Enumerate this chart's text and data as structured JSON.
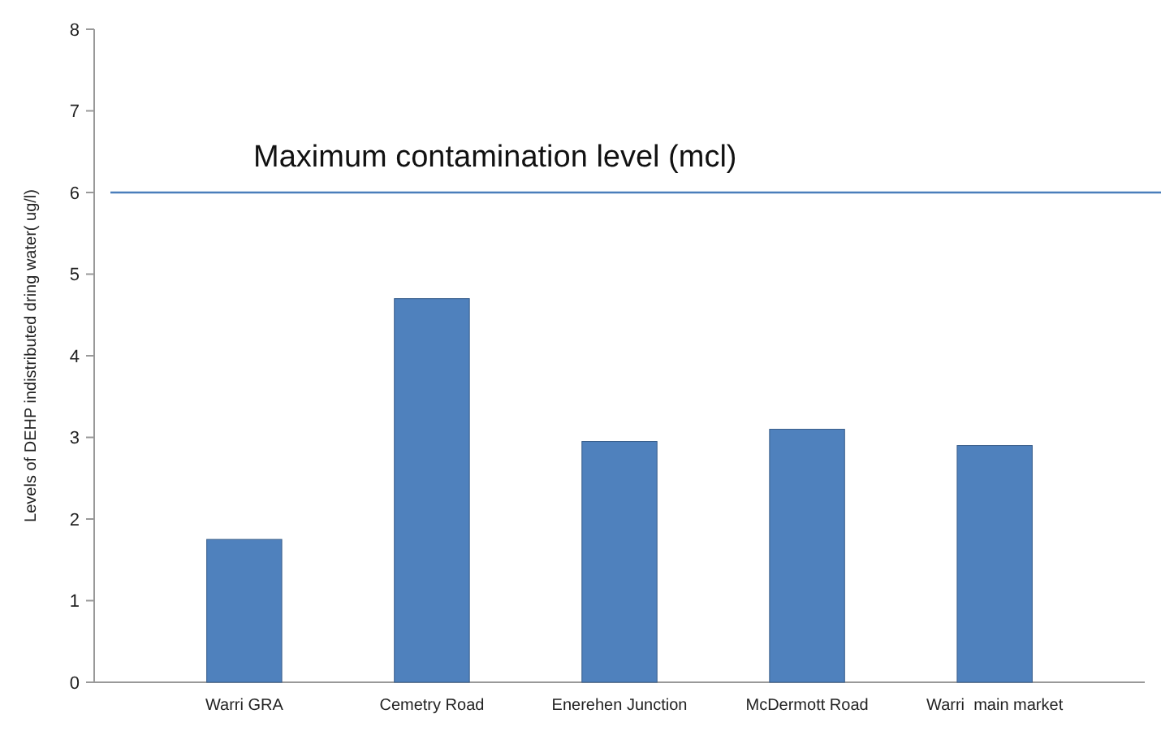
{
  "chart_data": {
    "type": "bar",
    "ylabel": "Levels of DEHP indistributed dring water( ug/l)",
    "categories": [
      "Warri GRA",
      "Cemetry Road",
      "Enerehen Junction",
      "McDermott Road",
      "Warri  main market"
    ],
    "values": [
      1.75,
      4.7,
      2.95,
      3.1,
      2.9
    ],
    "color": "#4f81bd",
    "ylim": [
      0,
      8
    ],
    "yticks": [
      0,
      1,
      2,
      3,
      4,
      5,
      6,
      7,
      8
    ],
    "grid": false,
    "ref_lines": [
      {
        "axis": "y",
        "value": 6,
        "label": "Maximum contamination level (mcl)",
        "color": "#4a7ebb"
      }
    ]
  }
}
